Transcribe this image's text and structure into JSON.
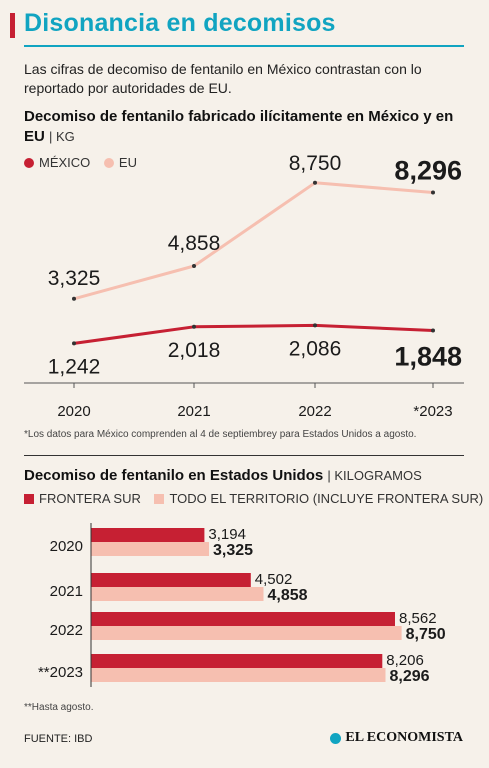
{
  "header": {
    "title": "Disonancia en decomisos",
    "subtitle": "Las cifras de decomiso de fentanilo en México contrastan con lo reportado por autoridades de EU."
  },
  "colors": {
    "accent": "#11a4c1",
    "brand_red": "#c62033",
    "mexico": "#c62033",
    "eu": "#f6bfb0",
    "frontera_sur": "#c62033",
    "todo_territorio": "#f6bfb0"
  },
  "chart_data": [
    {
      "type": "line",
      "title": "Decomiso de fentanilo fabricado ilícitamente en México y en EU",
      "unit": "| KG",
      "x": [
        "2020",
        "2021",
        "2022",
        "*2023"
      ],
      "series": [
        {
          "name": "MÉXICO",
          "values": [
            1242,
            2018,
            2086,
            1848
          ],
          "labels": [
            "1,242",
            "2,018",
            "2,086",
            "1,848"
          ]
        },
        {
          "name": "EU",
          "values": [
            3325,
            4858,
            8750,
            8296
          ],
          "labels": [
            "3,325",
            "4,858",
            "8,750",
            "8,296"
          ]
        }
      ],
      "legend": "top-left",
      "note": "*Los datos para México comprenden al 4 de septiembrey para Estados Unidos a agosto."
    },
    {
      "type": "bar",
      "orientation": "horizontal",
      "title": "Decomiso de fentanilo en Estados Unidos",
      "unit": "| KILOGRAMOS",
      "categories": [
        "2020",
        "2021",
        "2022",
        "**2023"
      ],
      "series": [
        {
          "name": "FRONTERA SUR",
          "values": [
            3194,
            4502,
            8562,
            8206
          ],
          "labels": [
            "3,194",
            "4,502",
            "8,562",
            "8,206"
          ]
        },
        {
          "name": "TODO EL TERRITORIO (INCLUYE FRONTERA SUR)",
          "values": [
            3325,
            4858,
            8750,
            8296
          ],
          "labels": [
            "3,325",
            "4,858",
            "8,750",
            "8,296"
          ]
        }
      ],
      "legend": "top-left",
      "note": "**Hasta agosto."
    }
  ],
  "footer": {
    "source": "FUENTE: IBD",
    "logo": "EL ECONOMISTA"
  }
}
